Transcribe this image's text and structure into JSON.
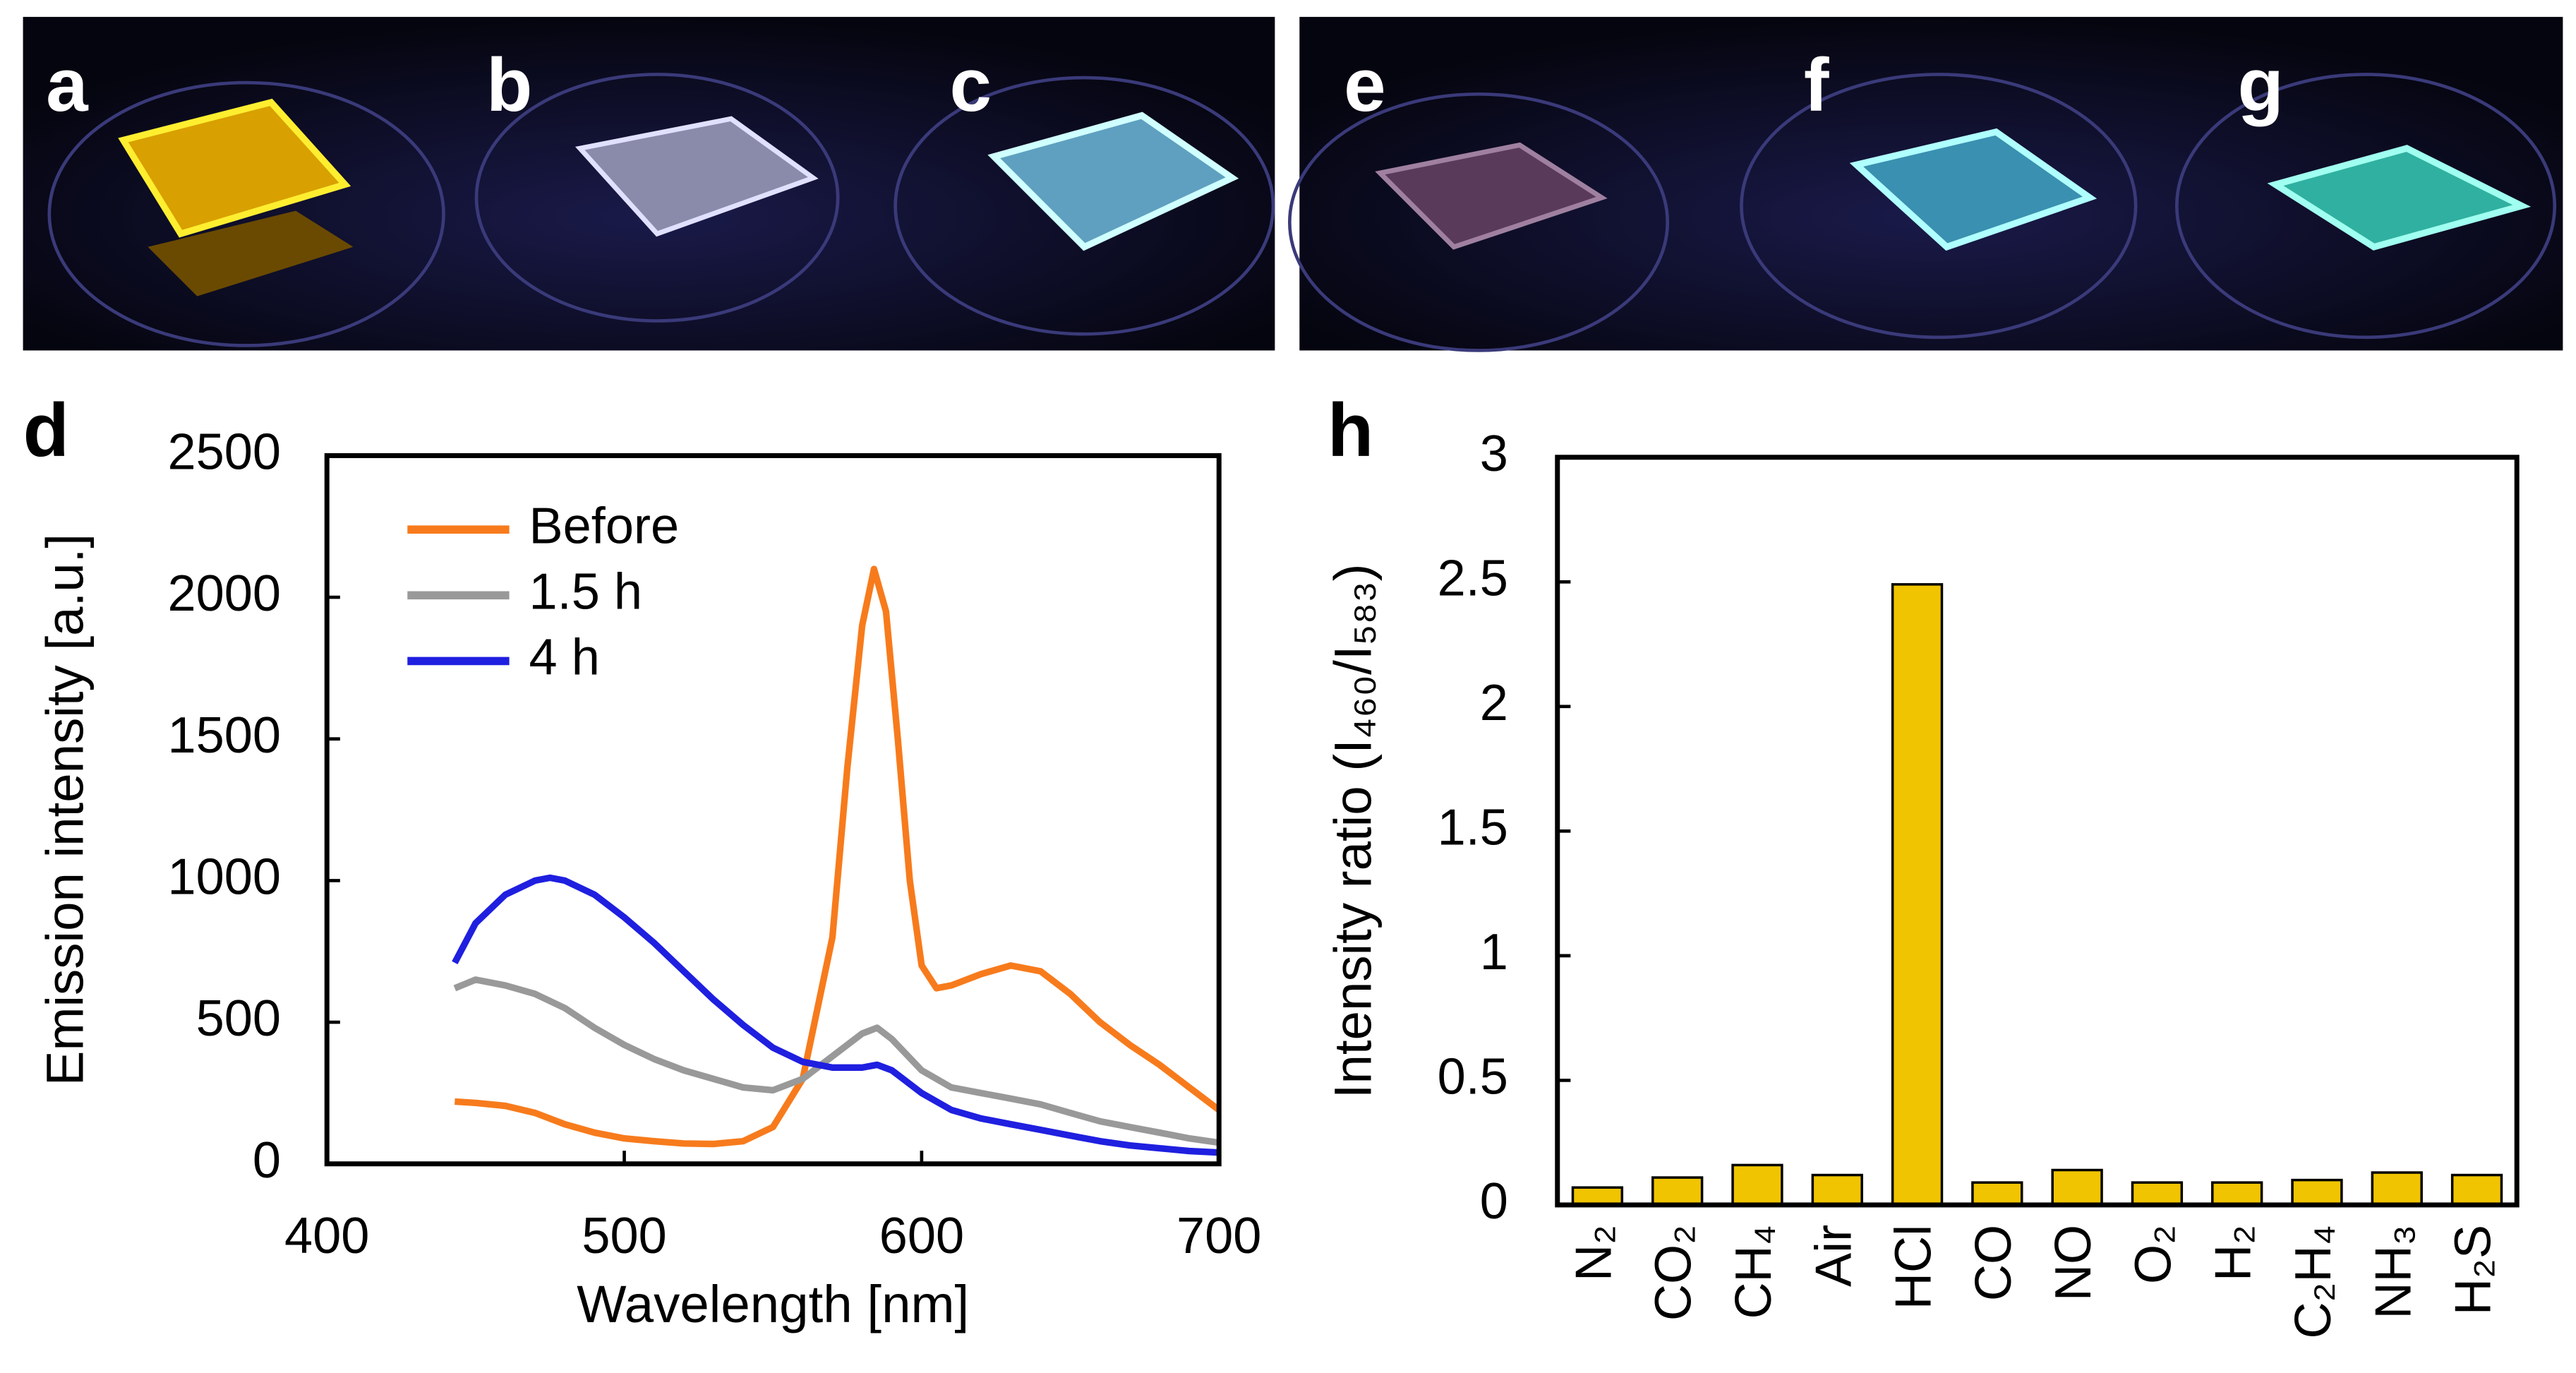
{
  "panels": [
    "a",
    "b",
    "c",
    "e",
    "f",
    "g"
  ],
  "chart_data": [
    {
      "type": "line",
      "panel_label": "d",
      "xlabel": "Wavelength [nm]",
      "ylabel": "Emission intensity [a.u.]",
      "xlim": [
        400,
        700
      ],
      "xticks": [
        400,
        500,
        600,
        700
      ],
      "ylim": [
        0,
        2500
      ],
      "yticks": [
        0,
        500,
        1000,
        1500,
        2000,
        2500
      ],
      "legend": "upper left",
      "series": [
        {
          "name": "Before",
          "color": "#f77b1c",
          "x": [
            443,
            450,
            460,
            470,
            480,
            490,
            500,
            510,
            520,
            530,
            540,
            550,
            560,
            570,
            575,
            580,
            584,
            588,
            592,
            596,
            600,
            605,
            610,
            620,
            630,
            640,
            650,
            660,
            670,
            680,
            690,
            700
          ],
          "values": [
            220,
            215,
            205,
            180,
            140,
            110,
            90,
            80,
            72,
            70,
            80,
            130,
            300,
            800,
            1400,
            1900,
            2100,
            1950,
            1500,
            1000,
            700,
            620,
            630,
            670,
            700,
            680,
            600,
            500,
            420,
            350,
            270,
            190
          ]
        },
        {
          "name": "1.5 h",
          "color": "#999999",
          "x": [
            443,
            450,
            460,
            470,
            480,
            490,
            500,
            510,
            520,
            530,
            540,
            550,
            560,
            570,
            580,
            585,
            590,
            600,
            610,
            620,
            630,
            640,
            650,
            660,
            670,
            680,
            690,
            700
          ],
          "values": [
            620,
            650,
            630,
            600,
            550,
            480,
            420,
            370,
            330,
            300,
            270,
            260,
            300,
            380,
            460,
            480,
            440,
            330,
            270,
            250,
            230,
            210,
            180,
            150,
            130,
            110,
            90,
            75
          ]
        },
        {
          "name": "4 h",
          "color": "#1f1fe0",
          "x": [
            443,
            450,
            460,
            470,
            475,
            480,
            490,
            500,
            510,
            520,
            530,
            540,
            550,
            560,
            570,
            580,
            585,
            590,
            600,
            610,
            620,
            630,
            640,
            650,
            660,
            670,
            680,
            690,
            700
          ],
          "values": [
            710,
            850,
            950,
            1000,
            1010,
            1000,
            950,
            870,
            780,
            680,
            580,
            490,
            410,
            360,
            340,
            340,
            350,
            330,
            250,
            190,
            160,
            140,
            120,
            100,
            80,
            65,
            55,
            45,
            40
          ]
        }
      ]
    },
    {
      "type": "bar",
      "panel_label": "h",
      "ylabel": "Intensity ratio (I₄₆₀/I₅₈₃)",
      "categories": [
        "N₂",
        "CO₂",
        "CH₄",
        "Air",
        "HCl",
        "CO",
        "NO",
        "O₂",
        "H₂",
        "C₂H₄",
        "NH₃",
        "H₂S"
      ],
      "values": [
        0.07,
        0.11,
        0.16,
        0.12,
        2.49,
        0.09,
        0.14,
        0.09,
        0.09,
        0.1,
        0.13,
        0.12
      ],
      "color": "#f0c400",
      "ylim": [
        0,
        3
      ],
      "yticks": [
        0,
        0.5,
        1,
        1.5,
        2,
        2.5,
        3
      ]
    }
  ]
}
